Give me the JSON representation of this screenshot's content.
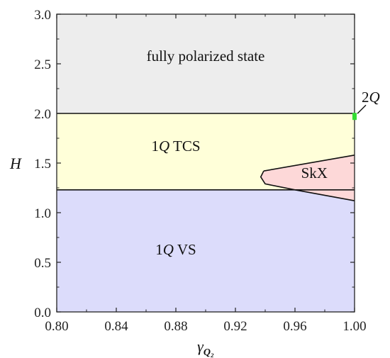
{
  "chart_data": {
    "type": "phase-diagram",
    "xlabel": "γ",
    "xlabel_sub": "Q₂",
    "ylabel": "H",
    "xlim": [
      0.8,
      1.0
    ],
    "ylim": [
      0.0,
      3.0
    ],
    "x_ticks": [
      "0.80",
      "0.84",
      "0.88",
      "0.92",
      "0.96",
      "1.00"
    ],
    "x_tick_values": [
      0.8,
      0.84,
      0.88,
      0.92,
      0.96,
      1.0
    ],
    "y_ticks": [
      "0.0",
      "0.5",
      "1.0",
      "1.5",
      "2.0",
      "2.5",
      "3.0"
    ],
    "y_tick_values": [
      0.0,
      0.5,
      1.0,
      1.5,
      2.0,
      2.5,
      3.0
    ],
    "regions": [
      {
        "name": "fully polarized state",
        "color": "#ededed",
        "polygon": [
          [
            0.8,
            2.0
          ],
          [
            1.0,
            2.0
          ],
          [
            1.0,
            3.0
          ],
          [
            0.8,
            3.0
          ]
        ]
      },
      {
        "name": "1Q TCS",
        "color": "#ffffd9",
        "polygon": [
          [
            0.8,
            1.23
          ],
          [
            1.0,
            1.23
          ],
          [
            1.0,
            2.0
          ],
          [
            0.8,
            2.0
          ]
        ]
      },
      {
        "name": "1Q VS",
        "color": "#dcdcfb",
        "polygon": [
          [
            0.8,
            0.0
          ],
          [
            1.0,
            0.0
          ],
          [
            1.0,
            1.23
          ],
          [
            0.8,
            1.23
          ]
        ]
      },
      {
        "name": "SkX",
        "color": "#fdd8d8",
        "polygon": [
          [
            0.939,
            1.42
          ],
          [
            0.937,
            1.36
          ],
          [
            0.94,
            1.29
          ],
          [
            0.96,
            1.23
          ],
          [
            1.0,
            1.12
          ],
          [
            1.0,
            1.58
          ]
        ]
      }
    ],
    "boundaries": [
      {
        "points": [
          [
            0.8,
            2.0
          ],
          [
            1.0,
            2.0
          ]
        ]
      },
      {
        "points": [
          [
            0.8,
            1.23
          ],
          [
            1.0,
            1.23
          ]
        ]
      },
      {
        "points": [
          [
            0.939,
            1.42
          ],
          [
            0.937,
            1.36
          ],
          [
            0.94,
            1.29
          ],
          [
            0.96,
            1.23
          ],
          [
            1.0,
            1.12
          ]
        ]
      },
      {
        "points": [
          [
            0.939,
            1.42
          ],
          [
            1.0,
            1.58
          ]
        ]
      }
    ],
    "labels": [
      {
        "prefix": "",
        "italic": "",
        "suffix": "fully polarized state",
        "x": 0.9,
        "y": 2.53
      },
      {
        "prefix": "1",
        "italic": "Q",
        "suffix": " TCS",
        "x": 0.88,
        "y": 1.62
      },
      {
        "prefix": "",
        "italic": "",
        "suffix": "SkX",
        "x": 0.973,
        "y": 1.35
      },
      {
        "prefix": "1",
        "italic": "Q",
        "suffix": " VS",
        "x": 0.88,
        "y": 0.58
      }
    ],
    "special_point": {
      "name": "2Q",
      "prefix": "2",
      "italic": "Q",
      "x": 1.0,
      "y": 1.97,
      "color": "#33dd33"
    }
  }
}
